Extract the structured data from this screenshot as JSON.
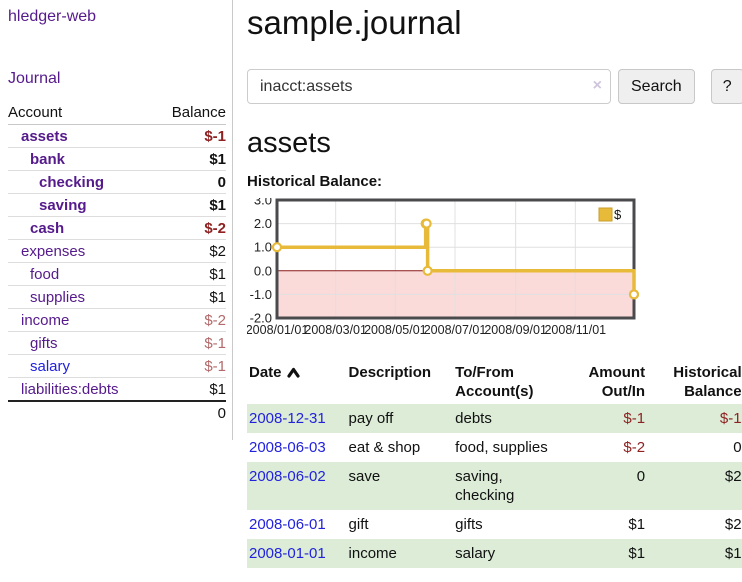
{
  "app": {
    "brand": "hledger-web"
  },
  "sidebar": {
    "nav_journal": "Journal",
    "accounts": {
      "headers": [
        "Account",
        "Balance"
      ],
      "rows": [
        {
          "name": "assets",
          "depth": 1,
          "bold": true,
          "balance": "$-1",
          "tone": "neg-strong"
        },
        {
          "name": "bank",
          "depth": 2,
          "bold": true,
          "balance": "$1",
          "tone": ""
        },
        {
          "name": "checking",
          "depth": 3,
          "bold": true,
          "balance": "0",
          "tone": ""
        },
        {
          "name": "saving",
          "depth": 3,
          "bold": true,
          "balance": "$1",
          "tone": ""
        },
        {
          "name": "cash",
          "depth": 2,
          "bold": true,
          "balance": "$-2",
          "tone": "neg-strong"
        },
        {
          "name": "expenses",
          "depth": 1,
          "bold": false,
          "balance": "$2",
          "tone": ""
        },
        {
          "name": "food",
          "depth": 2,
          "bold": false,
          "balance": "$1",
          "tone": ""
        },
        {
          "name": "supplies",
          "depth": 2,
          "bold": false,
          "balance": "$1",
          "tone": ""
        },
        {
          "name": "income",
          "depth": 1,
          "bold": false,
          "balance": "$-2",
          "tone": "neg-soft"
        },
        {
          "name": "gifts",
          "depth": 2,
          "bold": false,
          "balance": "$-1",
          "tone": "neg-soft"
        },
        {
          "name": "salary",
          "depth": 2,
          "bold": false,
          "balance": "$-1",
          "tone": "neg-soft",
          "unvisited": true
        },
        {
          "name": "liabilities:debts",
          "depth": 1,
          "bold": false,
          "balance": "$1",
          "tone": ""
        }
      ],
      "total": "0"
    }
  },
  "header": {
    "title": "sample.journal"
  },
  "search": {
    "query": "inacct:assets",
    "clear_icon": "×",
    "button_label": "Search",
    "help_label": "?"
  },
  "account_page": {
    "title": "assets",
    "chart_label": "Historical Balance:"
  },
  "chart_data": {
    "type": "line",
    "step": true,
    "title": "Historical Balance:",
    "legend": [
      "$"
    ],
    "legend_position": "top-right",
    "x_range": [
      "2008-01-01",
      "2008-12-31"
    ],
    "ylim": [
      -2,
      3
    ],
    "yticks": [
      3,
      2,
      1,
      0,
      -1,
      -2
    ],
    "xticks": [
      {
        "label": "2008/01/01",
        "date": "2008-01-01"
      },
      {
        "label": "2008/03/01",
        "date": "2008-03-01"
      },
      {
        "label": "2008/05/01",
        "date": "2008-05-01"
      },
      {
        "label": "2008/07/01",
        "date": "2008-07-01"
      },
      {
        "label": "2008/09/01",
        "date": "2008-09-01"
      },
      {
        "label": "2008/11/01",
        "date": "2008-11-01"
      }
    ],
    "series": [
      {
        "name": "$",
        "points": [
          {
            "date": "2008-01-01",
            "value": 1
          },
          {
            "date": "2008-06-01",
            "value": 2
          },
          {
            "date": "2008-06-02",
            "value": 2
          },
          {
            "date": "2008-06-03",
            "value": 0
          },
          {
            "date": "2008-12-31",
            "value": -1
          }
        ]
      }
    ],
    "grid": true
  },
  "register": {
    "headers": [
      "Date",
      "Description",
      "To/From\nAccount(s)",
      "Amount\nOut/In",
      "Historical\nBalance"
    ],
    "sort_icon": "chevron-up",
    "rows": [
      {
        "date": "2008-12-31",
        "description": "pay off",
        "accounts": "debts",
        "amount": "$-1",
        "amount_neg": true,
        "balance": "$-1",
        "balance_neg": true
      },
      {
        "date": "2008-06-03",
        "description": "eat & shop",
        "accounts": "food, supplies",
        "amount": "$-2",
        "amount_neg": true,
        "balance": "0",
        "balance_neg": false
      },
      {
        "date": "2008-06-02",
        "description": "save",
        "accounts": "saving,\nchecking",
        "amount": "0",
        "amount_neg": false,
        "balance": "$2",
        "balance_neg": false
      },
      {
        "date": "2008-06-01",
        "description": "gift",
        "accounts": "gifts",
        "amount": "$1",
        "amount_neg": false,
        "balance": "$2",
        "balance_neg": false
      },
      {
        "date": "2008-01-01",
        "description": "income",
        "accounts": "salary",
        "amount": "$1",
        "amount_neg": false,
        "balance": "$1",
        "balance_neg": false
      }
    ]
  },
  "colors": {
    "link_purple": "#551a8b",
    "link_blue": "#2222dd",
    "negative_strong": "#8e2222",
    "negative_soft": "#b36a6a",
    "row_green": "#dcecd7",
    "chart_line_gold": "#e8ba3a",
    "chart_negative_pink": "#fbdada",
    "chart_zero_line": "#8b1a1a",
    "chart_border": "#4a4a4c",
    "chart_grid": "#e0e0e0"
  }
}
